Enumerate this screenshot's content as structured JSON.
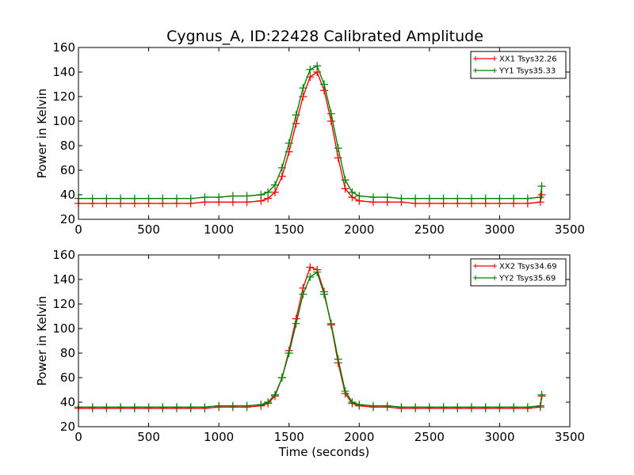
{
  "title": "Cygnus_A, ID:22428 Calibrated Amplitude",
  "chart_data": [
    {
      "type": "line",
      "title": "Cygnus_A, ID:22428 Calibrated Amplitude",
      "xlabel": "",
      "ylabel": "Power in Kelvin",
      "xlim": [
        0,
        3500
      ],
      "ylim": [
        20,
        160
      ],
      "x_ticks": [
        "0",
        "500",
        "1000",
        "1500",
        "2000",
        "2500",
        "3000",
        "3500"
      ],
      "y_ticks": [
        "20",
        "40",
        "60",
        "80",
        "100",
        "120",
        "140",
        "160"
      ],
      "grid": false,
      "legend_position": "top-right",
      "marker": "+",
      "x": [
        0,
        100,
        200,
        300,
        400,
        500,
        600,
        700,
        800,
        900,
        1000,
        1100,
        1200,
        1300,
        1350,
        1400,
        1450,
        1500,
        1550,
        1600,
        1650,
        1700,
        1750,
        1800,
        1850,
        1900,
        1950,
        2000,
        2100,
        2200,
        2300,
        2400,
        2500,
        2600,
        2700,
        2800,
        2900,
        3000,
        3100,
        3200,
        3290,
        3300
      ],
      "series": [
        {
          "name": "XX1 Tsys32.26",
          "color": "#ff0000",
          "values": [
            33,
            33,
            33,
            33,
            33,
            33,
            33,
            33,
            33,
            34,
            34,
            34,
            34,
            35,
            37,
            42,
            55,
            75,
            98,
            120,
            136,
            140,
            125,
            100,
            70,
            45,
            38,
            35,
            34,
            34,
            34,
            33,
            33,
            33,
            33,
            33,
            33,
            33,
            33,
            33,
            34,
            40
          ]
        },
        {
          "name": "YY1 Tsys35.33",
          "color": "#008000",
          "values": [
            37,
            37,
            37,
            37,
            37,
            37,
            37,
            37,
            37,
            38,
            38,
            39,
            39,
            40,
            42,
            48,
            62,
            82,
            105,
            127,
            142,
            145,
            130,
            106,
            78,
            52,
            42,
            39,
            38,
            38,
            37,
            37,
            37,
            37,
            37,
            37,
            37,
            37,
            37,
            37,
            38,
            47
          ]
        }
      ]
    },
    {
      "type": "line",
      "title": "",
      "xlabel": "Time (seconds)",
      "ylabel": "Power in Kelvin",
      "xlim": [
        0,
        3500
      ],
      "ylim": [
        20,
        160
      ],
      "x_ticks": [
        "0",
        "500",
        "1000",
        "1500",
        "2000",
        "2500",
        "3000",
        "3500"
      ],
      "y_ticks": [
        "20",
        "40",
        "60",
        "80",
        "100",
        "120",
        "140",
        "160"
      ],
      "grid": false,
      "legend_position": "top-right",
      "marker": "+",
      "x": [
        0,
        100,
        200,
        300,
        400,
        500,
        600,
        700,
        800,
        900,
        1000,
        1100,
        1200,
        1300,
        1350,
        1400,
        1450,
        1500,
        1550,
        1600,
        1650,
        1700,
        1750,
        1800,
        1850,
        1900,
        1950,
        2000,
        2100,
        2200,
        2300,
        2400,
        2500,
        2600,
        2700,
        2800,
        2900,
        3000,
        3100,
        3200,
        3290,
        3300
      ],
      "series": [
        {
          "name": "XX2 Tsys34.69",
          "color": "#ff0000",
          "values": [
            35,
            35,
            35,
            35,
            35,
            35,
            35,
            35,
            35,
            35,
            36,
            36,
            36,
            37,
            39,
            45,
            60,
            82,
            108,
            133,
            150,
            148,
            130,
            103,
            72,
            47,
            39,
            37,
            36,
            36,
            35,
            35,
            35,
            35,
            35,
            35,
            35,
            35,
            35,
            35,
            36,
            45
          ]
        },
        {
          "name": "YY2 Tsys35.69",
          "color": "#008000",
          "values": [
            36,
            36,
            36,
            36,
            36,
            36,
            36,
            36,
            36,
            36,
            37,
            37,
            37,
            38,
            40,
            46,
            60,
            80,
            104,
            128,
            142,
            146,
            128,
            104,
            75,
            49,
            40,
            38,
            37,
            37,
            36,
            36,
            36,
            36,
            36,
            36,
            36,
            36,
            36,
            36,
            37,
            46
          ]
        }
      ]
    }
  ]
}
